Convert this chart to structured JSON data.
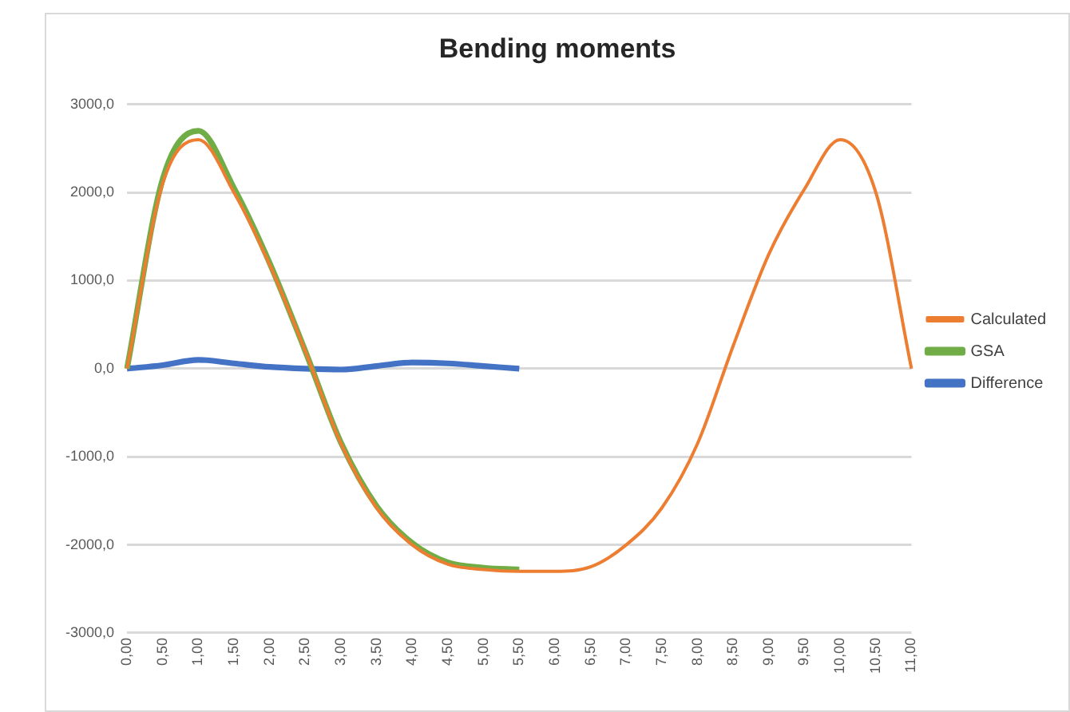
{
  "chart_data": {
    "type": "line",
    "title": "Bending moments",
    "categories": [
      "0,00",
      "0,50",
      "1,00",
      "1,50",
      "2,00",
      "2,50",
      "3,00",
      "3,50",
      "4,00",
      "4,50",
      "5,00",
      "5,50",
      "6,00",
      "6,50",
      "7,00",
      "7,50",
      "8,00",
      "8,50",
      "9,00",
      "9,50",
      "10,00",
      "10,50",
      "11,00"
    ],
    "series": [
      {
        "name": "Calculated",
        "color": "#ed7d31",
        "values": [
          0,
          2100,
          2600,
          2000,
          1180,
          200,
          -850,
          -1580,
          -2000,
          -2220,
          -2280,
          -2300,
          -2300,
          -2250,
          -2000,
          -1580,
          -850,
          260,
          1300,
          2040,
          2600,
          2000,
          0
        ]
      },
      {
        "name": "GSA",
        "color": "#70ad47",
        "values": [
          0,
          2150,
          2700,
          2050,
          1200,
          200,
          -840,
          -1560,
          -1980,
          -2200,
          -2260,
          -2280,
          null,
          null,
          null,
          null,
          null,
          null,
          null,
          null,
          null,
          null,
          null
        ]
      },
      {
        "name": "Difference",
        "color": "#4472c4",
        "values": [
          0,
          40,
          100,
          60,
          20,
          0,
          -10,
          30,
          70,
          60,
          30,
          0,
          null,
          null,
          null,
          null,
          null,
          null,
          null,
          null,
          null,
          null,
          null
        ]
      }
    ],
    "ylim": [
      -3000,
      3000
    ],
    "yticks": [
      {
        "value": -3000,
        "label": "-3000,0"
      },
      {
        "value": -2000,
        "label": "-2000,0"
      },
      {
        "value": -1000,
        "label": "-1000,0"
      },
      {
        "value": 0,
        "label": "0,0"
      },
      {
        "value": 1000,
        "label": "1000,0"
      },
      {
        "value": 2000,
        "label": "2000,0"
      },
      {
        "value": 3000,
        "label": "3000,0"
      }
    ],
    "grid": "y",
    "legend": "right",
    "marker": "none",
    "line_style": "solid"
  }
}
